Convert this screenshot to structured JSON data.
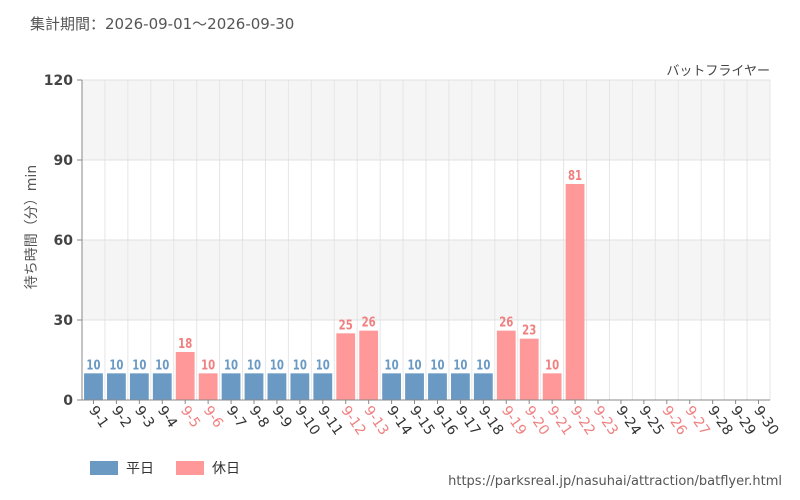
{
  "header": {
    "period": "集計期間：2026-09-01～2026-09-30"
  },
  "chart_data": {
    "type": "bar",
    "title": "バットフライヤー",
    "ylabel": "待ち時間（分）min",
    "xlabel": "",
    "ylim": [
      0,
      120
    ],
    "yticks": [
      0,
      30,
      60,
      90,
      120
    ],
    "grid": true,
    "categories": [
      "9-1",
      "9-2",
      "9-3",
      "9-4",
      "9-5",
      "9-6",
      "9-7",
      "9-8",
      "9-9",
      "9-10",
      "9-11",
      "9-12",
      "9-13",
      "9-14",
      "9-15",
      "9-16",
      "9-17",
      "9-18",
      "9-19",
      "9-20",
      "9-21",
      "9-22",
      "9-23",
      "9-24",
      "9-25",
      "9-26",
      "9-27",
      "9-28",
      "9-29",
      "9-30"
    ],
    "values": [
      10,
      10,
      10,
      10,
      18,
      10,
      10,
      10,
      10,
      10,
      10,
      25,
      26,
      10,
      10,
      10,
      10,
      10,
      26,
      23,
      10,
      81,
      null,
      null,
      null,
      null,
      null,
      null,
      null,
      null
    ],
    "day_type": [
      "weekday",
      "weekday",
      "weekday",
      "weekday",
      "holiday",
      "holiday",
      "weekday",
      "weekday",
      "weekday",
      "weekday",
      "weekday",
      "holiday",
      "holiday",
      "weekday",
      "weekday",
      "weekday",
      "weekday",
      "weekday",
      "holiday",
      "holiday",
      "holiday",
      "holiday",
      "holiday",
      "weekday",
      "weekday",
      "holiday",
      "holiday",
      "weekday",
      "weekday",
      "weekday"
    ],
    "series": [
      {
        "name": "平日",
        "color": "#6a9ac4"
      },
      {
        "name": "休日",
        "color": "#ff9999"
      }
    ],
    "colors": {
      "weekday_label": "#333333",
      "holiday_label": "#f08080",
      "holiday_value": "#f08080",
      "weekday_value": "#6a9ac4"
    }
  },
  "legend": {
    "weekday": "平日",
    "holiday": "休日"
  },
  "footer": {
    "source": "https://parksreal.jp/nasuhai/attraction/batflyer.html"
  }
}
